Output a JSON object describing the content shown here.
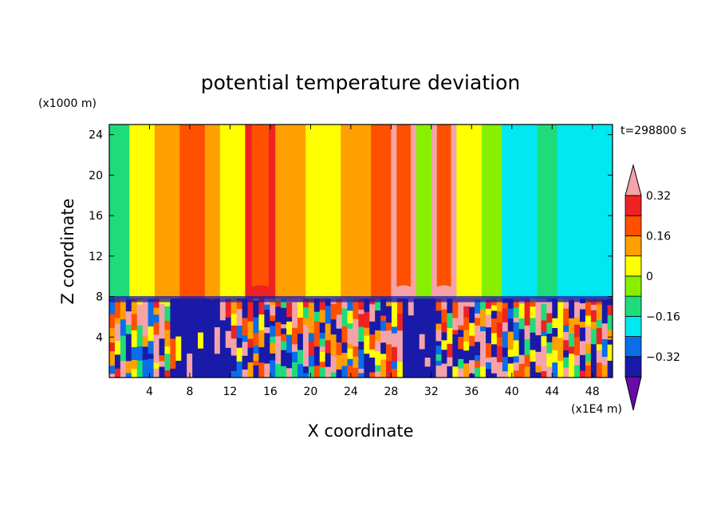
{
  "chart_data": {
    "type": "heatmap",
    "title": "potential temperature deviation",
    "xlabel": "X coordinate",
    "ylabel": "Z coordinate",
    "x_units": "(x1E4 m)",
    "y_units": "(x1000 m)",
    "time_label": "t=298800 s",
    "xlim": [
      0,
      50
    ],
    "ylim": [
      0,
      25
    ],
    "x_ticks": [
      4,
      8,
      12,
      16,
      20,
      24,
      28,
      32,
      36,
      40,
      44,
      48
    ],
    "y_ticks": [
      4,
      8,
      12,
      16,
      20,
      24
    ],
    "boundary_layer_top": 7.8,
    "colorbar": {
      "levels": [
        -0.4,
        -0.32,
        -0.24,
        -0.16,
        -0.08,
        0,
        0.08,
        0.16,
        0.24,
        0.32,
        0.4
      ],
      "labeled_levels": [
        -0.32,
        -0.16,
        0,
        0.16,
        0.32
      ],
      "labels": [
        "-0.32",
        "-0.16",
        "0",
        "0.16",
        "0.32"
      ],
      "colors": [
        "#6a0aa8",
        "#1a1aa8",
        "#0a6ee8",
        "#00e8f2",
        "#1edc7a",
        "#86f000",
        "#ffff00",
        "#ffa000",
        "#ff5000",
        "#ee2222",
        "#f4a4a8"
      ],
      "extend": "both"
    },
    "upper_columns": [
      {
        "x0": 0,
        "x1": 2,
        "value": -0.1
      },
      {
        "x0": 2,
        "x1": 4.5,
        "value": 0.0
      },
      {
        "x0": 4.5,
        "x1": 7,
        "value": 0.08
      },
      {
        "x0": 7,
        "x1": 9.5,
        "value": 0.16
      },
      {
        "x0": 9.5,
        "x1": 11,
        "value": 0.08
      },
      {
        "x0": 11,
        "x1": 13.5,
        "value": 0.0
      },
      {
        "x0": 13.5,
        "x1": 16.5,
        "value": 0.24
      },
      {
        "x0": 16.5,
        "x1": 19.5,
        "value": 0.08
      },
      {
        "x0": 19.5,
        "x1": 23,
        "value": 0.0
      },
      {
        "x0": 23,
        "x1": 26,
        "value": 0.08
      },
      {
        "x0": 26,
        "x1": 28,
        "value": 0.16
      },
      {
        "x0": 28,
        "x1": 30.5,
        "value": 0.36
      },
      {
        "x0": 30.5,
        "x1": 32,
        "value": -0.04
      },
      {
        "x0": 32,
        "x1": 34.5,
        "value": 0.36
      },
      {
        "x0": 34.5,
        "x1": 37,
        "value": 0.0
      },
      {
        "x0": 37,
        "x1": 39,
        "value": -0.08
      },
      {
        "x0": 39,
        "x1": 42.5,
        "value": -0.2
      },
      {
        "x0": 42.5,
        "x1": 44.5,
        "value": -0.1
      },
      {
        "x0": 44.5,
        "x1": 50,
        "value": -0.2
      }
    ]
  }
}
